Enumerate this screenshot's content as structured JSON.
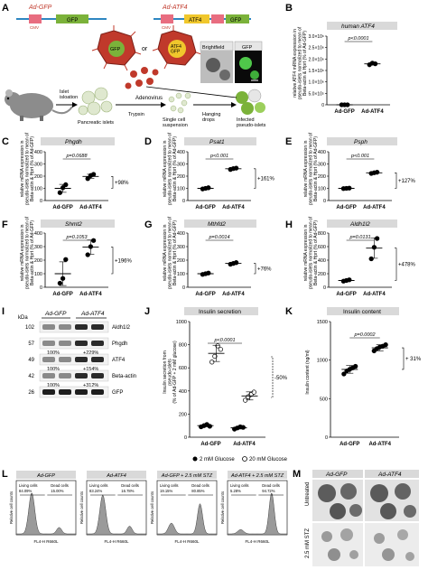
{
  "panels": {
    "A": {
      "letter": "A",
      "construct_gfp": {
        "name": "Ad-GFP",
        "promoter": "CMV",
        "gene": "GFP"
      },
      "construct_atf4": {
        "name": "Ad-ATF4",
        "promoter": "CMV",
        "gene1": "ATF4",
        "gene2": "GFP"
      },
      "or_label": "or",
      "virus_gfp_label": "GFP",
      "virus_atf4_label": "ATF4\nGFP",
      "brightfield_label": "Brightfield",
      "gfp_label": "GFP",
      "adenovirus_label": "Adenovirus",
      "islet_isolation_label": "Islet\nisloation",
      "pancreatic_islets_label": "Pancreatic islets",
      "trypsin_label": "Trypsin",
      "single_cell_label": "Single cell\nsuspension",
      "hanging_drops_label": "Hanging\ndrops",
      "infected_label": "Infected\npseudo-islets"
    },
    "B": {
      "letter": "B",
      "title": "human ATF4",
      "pvalue": "p<0.0001",
      "ylabel": "relative ATF4 mRNA expression in\npseudo-islets normalized to mean of\nBeta-actin & Hprt (% of Ad-GFP)",
      "yticks": [
        "0",
        "5.0×10⁵",
        "1.0×10⁶",
        "1.5×10⁶",
        "2.0×10⁶",
        "2.5×10⁶",
        "3.0×10⁶"
      ],
      "categories": [
        "Ad-GFP",
        "Ad-ATF4"
      ]
    },
    "C": {
      "letter": "C",
      "title": "Phgdh",
      "pvalue": "p=0.0688",
      "delta": "+98%",
      "yticks": [
        "0",
        "100",
        "200",
        "300",
        "400"
      ],
      "categories": [
        "Ad-GFP",
        "Ad-ATF4"
      ],
      "ylabel": "relative mRNA expression in\npseudo-islets normalized to mean of\nBeta-actin & Hprt (% of Ad-GFP)"
    },
    "D": {
      "letter": "D",
      "title": "Psat1",
      "pvalue": "p<0.001",
      "delta": "+161%",
      "yticks": [
        "0",
        "100",
        "200",
        "300",
        "400"
      ],
      "categories": [
        "Ad-GFP",
        "Ad-ATF4"
      ],
      "ylabel": "relative mRNA expression in\npseudo-islets normalized to mean of\nBeta-actin & Hprt (% of Ad-GFP)"
    },
    "E": {
      "letter": "E",
      "title": "Psph",
      "pvalue": "p<0.001",
      "delta": "+127%",
      "yticks": [
        "0",
        "100",
        "200",
        "300",
        "400"
      ],
      "categories": [
        "Ad-GFP",
        "Ad-ATF4"
      ],
      "ylabel": "relative mRNA expression in\npseudo-islets normalized to mean of\nBeta-actin & Hprt (% of Ad-GFP)"
    },
    "F": {
      "letter": "F",
      "title": "Shmt2",
      "pvalue": "p=0.1053",
      "delta": "+196%",
      "yticks": [
        "0",
        "100",
        "200",
        "300",
        "400"
      ],
      "categories": [
        "Ad-GFP",
        "Ad-ATF4"
      ],
      "ylabel": "relative mRNA expression in\npseudo-islets normalized to mean of\nBeta-actin & Hprt (% of Ad-GFP)"
    },
    "G": {
      "letter": "G",
      "title": "Mthfd2",
      "pvalue": "p=0.0014",
      "delta": "+76%",
      "yticks": [
        "0",
        "100",
        "200",
        "300",
        "400"
      ],
      "categories": [
        "Ad-GFP",
        "Ad-ATF4"
      ],
      "ylabel": "relative mRNA expression in\npseudo-islets normalized to mean of\nBeta-actin & Hprt (% of Ad-GFP)"
    },
    "H": {
      "letter": "H",
      "title": "Aldh1l2",
      "pvalue": "p=0.0131",
      "delta": "+478%",
      "yticks": [
        "0",
        "200",
        "400",
        "600",
        "800"
      ],
      "categories": [
        "Ad-GFP",
        "Ad-ATF4"
      ],
      "ylabel": "relative mRNA expression in\npseudo-islets normalized to mean of\nBeta-actin & Hprt (% of Ad-GFP)"
    },
    "I": {
      "letter": "I",
      "kda_label": "kDa",
      "col1": "Ad-GFP",
      "col2": "Ad-ATF4",
      "rows": [
        {
          "kda": "102",
          "name": "Aldh1l2",
          "ref": "",
          "pct": ""
        },
        {
          "kda": "57",
          "name": "Phgdh",
          "ref": "100%",
          "pct": "+229%"
        },
        {
          "kda": "49",
          "name": "ATF4",
          "ref": "100%",
          "pct": "+154%"
        },
        {
          "kda": "42",
          "name": "Beta-actin",
          "ref": "100%",
          "pct": "+312%"
        },
        {
          "kda": "26",
          "name": "GFP",
          "ref": "",
          "pct": ""
        }
      ]
    },
    "J": {
      "letter": "J",
      "title": "Insulin secretion",
      "p1": "p<0.0001",
      "p2": "p<0.0001",
      "delta": "-50%",
      "ylabel": "Insulin secretion from\npseudo-islets\n(% of Ad-GFP + 2 mM glucose)",
      "yticks": [
        "0",
        "200",
        "400",
        "600",
        "800",
        "1000"
      ],
      "categories": [
        "Ad-GFP",
        "Ad-ATF4"
      ],
      "legend_low": "2 mM Glucose",
      "legend_high": "20 mM Glucose"
    },
    "K": {
      "letter": "K",
      "title": "Insulin content",
      "pvalue": "p=0.0002",
      "delta": "+ 31%",
      "ylabel": "Insulin content (ng/ml)",
      "yticks": [
        "0",
        "500",
        "1000",
        "1500"
      ],
      "categories": [
        "Ad-GFP",
        "Ad-ATF4"
      ]
    },
    "L": {
      "letter": "L",
      "plots": [
        {
          "title": "Ad-GFP",
          "living_pct": "84.09%",
          "dead_pct": "15.00%"
        },
        {
          "title": "Ad-ATF4",
          "living_pct": "83.24%",
          "dead_pct": "16.78%"
        },
        {
          "title": "Ad-GFP + 2.5 mM STZ",
          "living_pct": "19.15%",
          "dead_pct": "80.85%"
        },
        {
          "title": "Ad-ATF4 + 2.5 mM STZ",
          "living_pct": "5.28%",
          "dead_pct": "94.72%"
        }
      ],
      "living_label": "Living cells",
      "dead_label": "Dead cells",
      "xlabel": "FL4-H R660L",
      "ylabel": "Relative cell counts"
    },
    "M": {
      "letter": "M",
      "col1": "Ad-GFP",
      "col2": "Ad-ATF4",
      "row1": "Untreated",
      "row2": "2.5 mM STZ"
    }
  },
  "chart_data": [
    {
      "panel": "B",
      "type": "scatter",
      "title": "human ATF4",
      "categories": [
        "Ad-GFP",
        "Ad-ATF4"
      ],
      "series": [
        {
          "values_by_category": [
            [
              100,
              100,
              100
            ],
            [
              1750000,
              1820000,
              1790000
            ]
          ]
        }
      ],
      "means": [
        100,
        1790000
      ],
      "ylim": [
        0,
        3000000
      ]
    },
    {
      "panel": "C",
      "type": "scatter",
      "title": "Phgdh",
      "categories": [
        "Ad-GFP",
        "Ad-ATF4"
      ],
      "series": [
        {
          "values_by_category": [
            [
              65,
              105,
              130
            ],
            [
              180,
              205,
              215
            ]
          ]
        }
      ],
      "means": [
        100,
        198
      ],
      "ylim": [
        0,
        400
      ]
    },
    {
      "panel": "D",
      "type": "scatter",
      "title": "Psat1",
      "categories": [
        "Ad-GFP",
        "Ad-ATF4"
      ],
      "series": [
        {
          "values_by_category": [
            [
              95,
              100,
              105
            ],
            [
              255,
              262,
              266
            ]
          ]
        }
      ],
      "means": [
        100,
        261
      ],
      "ylim": [
        0,
        400
      ]
    },
    {
      "panel": "E",
      "type": "scatter",
      "title": "Psph",
      "categories": [
        "Ad-GFP",
        "Ad-ATF4"
      ],
      "series": [
        {
          "values_by_category": [
            [
              98,
              100,
              102
            ],
            [
              222,
              228,
              232
            ]
          ]
        }
      ],
      "means": [
        100,
        227
      ],
      "ylim": [
        0,
        400
      ]
    },
    {
      "panel": "F",
      "type": "scatter",
      "title": "Shmt2",
      "categories": [
        "Ad-GFP",
        "Ad-ATF4"
      ],
      "series": [
        {
          "values_by_category": [
            [
              30,
              65,
              205
            ],
            [
              240,
              300,
              345
            ]
          ]
        }
      ],
      "means": [
        100,
        296
      ],
      "ylim": [
        0,
        400
      ]
    },
    {
      "panel": "G",
      "type": "scatter",
      "title": "Mthfd2",
      "categories": [
        "Ad-GFP",
        "Ad-ATF4"
      ],
      "series": [
        {
          "values_by_category": [
            [
              95,
              100,
              105
            ],
            [
              170,
              176,
              182
            ]
          ]
        }
      ],
      "means": [
        100,
        176
      ],
      "ylim": [
        0,
        400
      ]
    },
    {
      "panel": "H",
      "type": "scatter",
      "title": "Aldh1l2",
      "categories": [
        "Ad-GFP",
        "Ad-ATF4"
      ],
      "series": [
        {
          "values_by_category": [
            [
              90,
              100,
              110
            ],
            [
              420,
              590,
              720
            ]
          ]
        }
      ],
      "means": [
        100,
        578
      ],
      "ylim": [
        0,
        800
      ]
    },
    {
      "panel": "J",
      "type": "scatter",
      "title": "Insulin secretion",
      "categories": [
        "Ad-GFP",
        "Ad-ATF4"
      ],
      "series": [
        {
          "name": "2 mM Glucose",
          "values_by_category": [
            [
              90,
              100,
              110,
              95
            ],
            [
              70,
              80,
              90,
              85
            ]
          ]
        },
        {
          "name": "20 mM Glucose",
          "values_by_category": [
            [
              650,
              700,
              790,
              760
            ],
            [
              320,
              350,
              370,
              390
            ]
          ]
        }
      ],
      "means": {
        "2 mM Glucose": [
          100,
          81
        ],
        "20 mM Glucose": [
          725,
          357
        ]
      },
      "ylim": [
        0,
        1000
      ]
    },
    {
      "panel": "K",
      "type": "scatter",
      "title": "Insulin content",
      "categories": [
        "Ad-GFP",
        "Ad-ATF4"
      ],
      "series": [
        {
          "values_by_category": [
            [
              820,
              860,
              880,
              900,
              920
            ],
            [
              1120,
              1150,
              1170,
              1180,
              1200
            ]
          ]
        }
      ],
      "means": [
        880,
        1160
      ],
      "ylim": [
        0,
        1500
      ]
    }
  ],
  "colors": {
    "gfp_green": "#7bb23a",
    "atf4_yellow": "#f0c72c",
    "promoter_pink": "#e86d80",
    "line_blue": "#2e86c1",
    "virus_red": "#c0392b",
    "panel_header_bg": "#d9d9d9",
    "histogram_fill": "#9a9a9a"
  }
}
